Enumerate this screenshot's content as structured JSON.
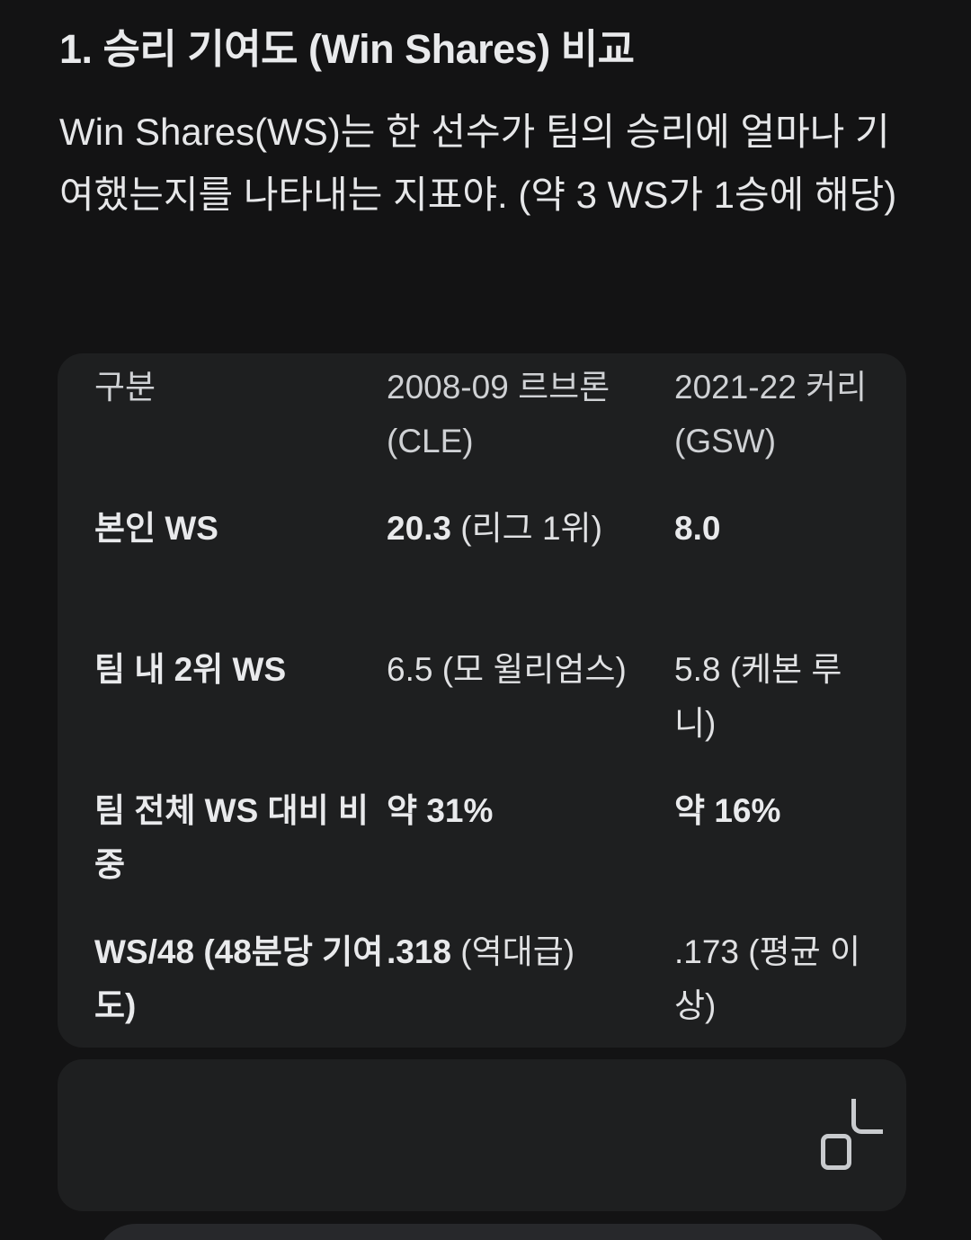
{
  "section": {
    "title": "1. 승리 기여도 (Win Shares) 비교",
    "description": "Win Shares(WS)는 한 선수가 팀의 승리에 얼마나 기여했는지를 나타내는 지표야. (약 3 WS가 1승에 해당)"
  },
  "table": {
    "columns": [
      "구분",
      "2008-09 르브론 (CLE)",
      "2021-22 커리 (GSW)"
    ],
    "rows": [
      {
        "cells": [
          {
            "strong": "본인 WS",
            "note": ""
          },
          {
            "strong": "20.3",
            "note": " (리그 1위)"
          },
          {
            "strong": "8.0",
            "note": ""
          }
        ]
      },
      {
        "cells": [
          {
            "strong": "팀 내 2위 WS",
            "note": ""
          },
          {
            "strong": "",
            "note": "6.5 (모 윌리엄스)"
          },
          {
            "strong": "",
            "note": "5.8 (케본 루니)"
          }
        ]
      },
      {
        "cells": [
          {
            "strong": "팀 전체 WS 대비 비중",
            "note": ""
          },
          {
            "strong": "약 31%",
            "note": ""
          },
          {
            "strong": "약 16%",
            "note": ""
          }
        ]
      },
      {
        "cells": [
          {
            "strong": "WS/48 (48분당 기여도)",
            "note": ""
          },
          {
            "strong": ".318",
            "note": " (역대급)"
          },
          {
            "strong": "",
            "note": ".173 (평균 이상)"
          }
        ]
      }
    ]
  },
  "actions": {
    "copy_icon": "copy-icon"
  },
  "colors": {
    "page_bg": "#131314",
    "card_bg": "#1e1f20",
    "input_bar_bg": "#27282b",
    "text_primary": "#e9eaec",
    "text_secondary": "#cfd1d4",
    "icon_stroke": "#c9cbce"
  }
}
